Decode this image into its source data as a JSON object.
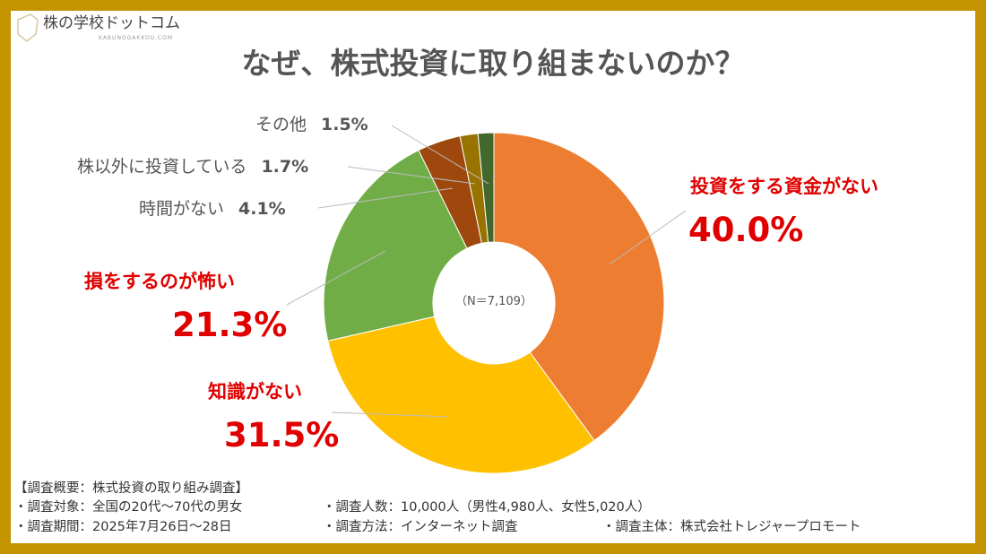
{
  "logo": {
    "name": "株の学校ドットコム",
    "sub": "KABUNOGAKKOU.COM",
    "mark": "KG"
  },
  "title": "なぜ、株式投資に取り組まないのか？",
  "chart_data": {
    "type": "pie",
    "title": "なぜ、株式投資に取り組まないのか？",
    "center_label": "（N＝7,109）",
    "categories": [
      "投資をする資金がない",
      "知識がない",
      "損をするのが怖い",
      "時間がない",
      "株以外に投資している",
      "その他"
    ],
    "values": [
      40.0,
      31.5,
      21.3,
      4.1,
      1.7,
      1.5
    ],
    "value_labels": [
      "40.0%",
      "31.5%",
      "21.3%",
      "4.1%",
      "1.7%",
      "1.5%"
    ],
    "colors": [
      "#ED7D31",
      "#FFC000",
      "#70AD47",
      "#9E480E",
      "#997300",
      "#43682B"
    ]
  },
  "footer": {
    "heading": "【調査概要：株式投資の取り組み調査】",
    "target": "・調査対象：全国の20代～70代の男女",
    "count": "・調査人数：10,000人（男性4,980人、女性5,020人）",
    "period": "・調査期間：2025年7月26日～28日",
    "method": "・調査方法：インターネット調査",
    "organizer": "・調査主体：株式会社トレジャープロモート"
  }
}
